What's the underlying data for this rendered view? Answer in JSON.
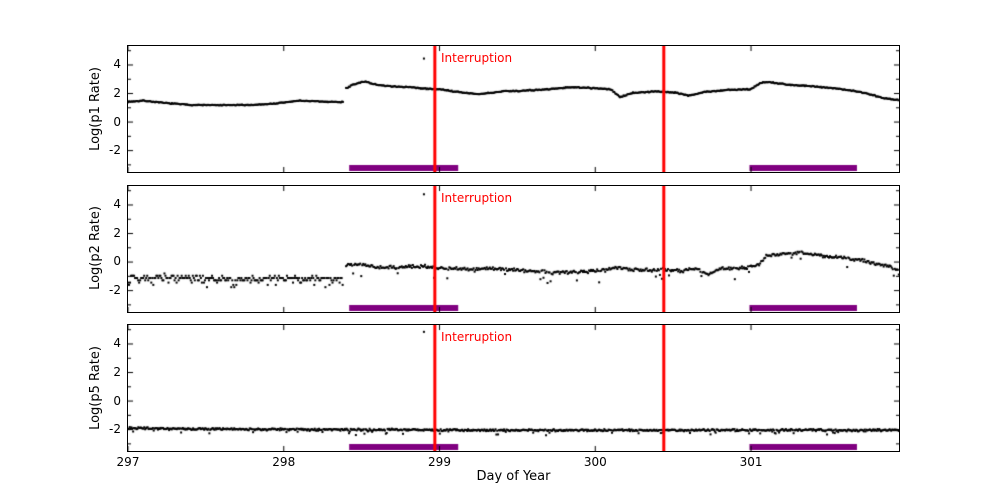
{
  "figure": {
    "xlabel": "Day of Year",
    "x_ticks": [
      297,
      298,
      299,
      300,
      301
    ],
    "xlim": [
      297,
      301.95
    ],
    "ylim": [
      -3.5,
      5.33
    ],
    "y_ticks_major": [
      4,
      2,
      0,
      -2
    ],
    "y_ticks_minor": [
      5,
      3,
      1,
      -1,
      -3
    ],
    "interruption_label": "Interruption",
    "interruption_days": [
      298.97,
      300.44
    ],
    "coverage_bar_spans": [
      [
        298.42,
        299.12
      ],
      [
        300.99,
        301.68
      ]
    ],
    "colors": {
      "data": "#000000",
      "interruption_line": "#ff0000",
      "interruption_text": "#ff0000",
      "coverage_bar": "#800080",
      "axes": "#000000",
      "background": "#ffffff"
    },
    "legend": "none",
    "grid": false
  },
  "chart_data": [
    {
      "type": "scatter",
      "name": "p1",
      "ylabel": "Log(p1 Rate)",
      "outlier_point": [
        298.9,
        4.45
      ],
      "segments": [
        {
          "x": [
            297.0,
            298.38
          ],
          "step": 0.006,
          "noise": 0.04,
          "keys": [
            [
              297.0,
              1.42
            ],
            [
              297.1,
              1.5
            ],
            [
              297.22,
              1.35
            ],
            [
              297.4,
              1.2
            ],
            [
              297.6,
              1.18
            ],
            [
              297.8,
              1.2
            ],
            [
              297.95,
              1.3
            ],
            [
              298.1,
              1.5
            ],
            [
              298.25,
              1.43
            ],
            [
              298.38,
              1.4
            ]
          ]
        },
        {
          "x": [
            298.4,
            301.95
          ],
          "step": 0.006,
          "noise": 0.045,
          "keys": [
            [
              298.4,
              2.35
            ],
            [
              298.44,
              2.6
            ],
            [
              298.52,
              2.85
            ],
            [
              298.6,
              2.6
            ],
            [
              298.7,
              2.5
            ],
            [
              298.8,
              2.45
            ],
            [
              298.9,
              2.35
            ],
            [
              299.0,
              2.3
            ],
            [
              299.12,
              2.1
            ],
            [
              299.25,
              1.95
            ],
            [
              299.4,
              2.15
            ],
            [
              299.55,
              2.2
            ],
            [
              299.7,
              2.3
            ],
            [
              299.85,
              2.45
            ],
            [
              299.95,
              2.4
            ],
            [
              300.1,
              2.3
            ],
            [
              300.16,
              1.75
            ],
            [
              300.24,
              2.05
            ],
            [
              300.4,
              2.15
            ],
            [
              300.52,
              2.05
            ],
            [
              300.6,
              1.85
            ],
            [
              300.7,
              2.1
            ],
            [
              300.85,
              2.25
            ],
            [
              301.0,
              2.3
            ],
            [
              301.06,
              2.75
            ],
            [
              301.12,
              2.8
            ],
            [
              301.25,
              2.6
            ],
            [
              301.4,
              2.5
            ],
            [
              301.55,
              2.35
            ],
            [
              301.68,
              2.15
            ],
            [
              301.78,
              1.9
            ],
            [
              301.86,
              1.65
            ],
            [
              301.95,
              1.55
            ]
          ]
        }
      ]
    },
    {
      "type": "scatter",
      "name": "p2",
      "ylabel": "Log(p2 Rate)",
      "outlier_point": [
        298.9,
        4.75
      ],
      "segments": [
        {
          "x": [
            297.0,
            298.38
          ],
          "step": 0.0065,
          "noise": 0.28,
          "quantize": 0.16,
          "out_p": 0.12,
          "out_mag": -0.5,
          "keys": [
            [
              297.0,
              -1.1
            ],
            [
              298.38,
              -1.2
            ]
          ]
        },
        {
          "x": [
            298.4,
            301.95
          ],
          "step": 0.0065,
          "noise": 0.15,
          "out_p": 0.05,
          "out_mag": -0.8,
          "keys": [
            [
              298.4,
              -0.15
            ],
            [
              298.5,
              -0.2
            ],
            [
              298.62,
              -0.4
            ],
            [
              298.75,
              -0.35
            ],
            [
              298.9,
              -0.3
            ],
            [
              299.0,
              -0.45
            ],
            [
              299.15,
              -0.5
            ],
            [
              299.3,
              -0.45
            ],
            [
              299.45,
              -0.55
            ],
            [
              299.6,
              -0.65
            ],
            [
              299.75,
              -0.75
            ],
            [
              299.9,
              -0.7
            ],
            [
              300.05,
              -0.6
            ],
            [
              300.15,
              -0.4
            ],
            [
              300.3,
              -0.6
            ],
            [
              300.45,
              -0.55
            ],
            [
              300.55,
              -0.6
            ],
            [
              300.65,
              -0.45
            ],
            [
              300.72,
              -0.85
            ],
            [
              300.8,
              -0.5
            ],
            [
              300.95,
              -0.4
            ],
            [
              301.05,
              -0.2
            ],
            [
              301.1,
              0.45
            ],
            [
              301.2,
              0.55
            ],
            [
              301.32,
              0.65
            ],
            [
              301.42,
              0.5
            ],
            [
              301.55,
              0.35
            ],
            [
              301.68,
              0.15
            ],
            [
              301.8,
              -0.1
            ],
            [
              301.9,
              -0.4
            ],
            [
              301.95,
              -0.55
            ]
          ]
        }
      ]
    },
    {
      "type": "scatter",
      "name": "p5",
      "ylabel": "Log(p5 Rate)",
      "outlier_point": [
        298.9,
        4.85
      ],
      "segments": [
        {
          "x": [
            297.0,
            301.95
          ],
          "step": 0.0055,
          "noise": 0.09,
          "out_p": 0.04,
          "out_mag": -0.3,
          "keys": [
            [
              297.0,
              -1.9
            ],
            [
              297.6,
              -1.97
            ],
            [
              298.2,
              -2.0
            ],
            [
              299.0,
              -2.03
            ],
            [
              300.0,
              -2.05
            ],
            [
              301.0,
              -2.03
            ],
            [
              301.95,
              -2.05
            ]
          ]
        }
      ]
    }
  ]
}
